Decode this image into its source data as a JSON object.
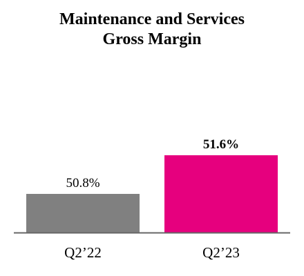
{
  "chart_data": {
    "type": "bar",
    "title": [
      "Maintenance and Services",
      "Gross Margin"
    ],
    "categories": [
      "Q2’22",
      "Q2’23"
    ],
    "values": [
      50.8,
      51.6
    ],
    "value_labels": [
      "50.8%",
      "51.6%"
    ],
    "value_label_bold": [
      false,
      true
    ],
    "colors": [
      "#808080",
      "#e6007e"
    ],
    "axis_color": "#666666",
    "grid": false,
    "xlabel": "",
    "ylabel": ""
  }
}
